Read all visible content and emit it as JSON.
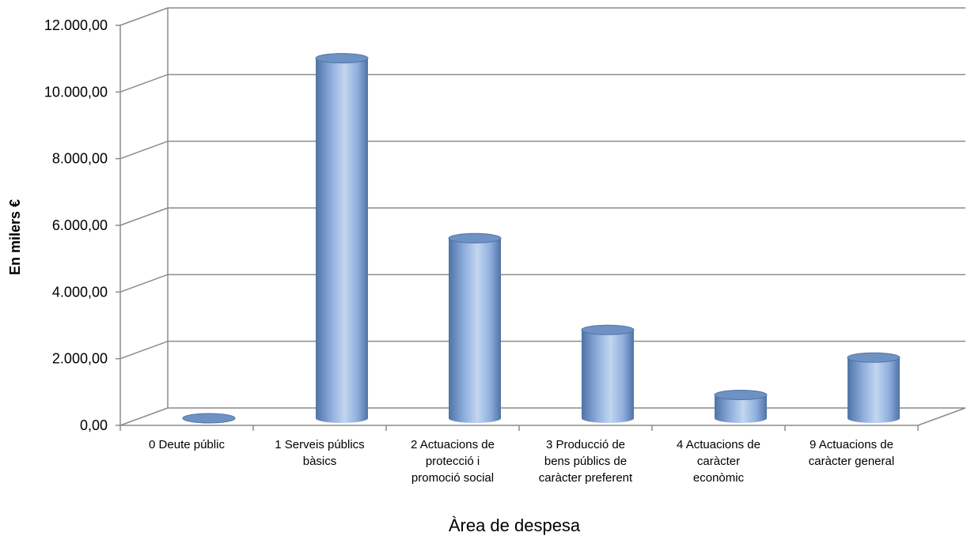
{
  "chart_data": {
    "type": "bar",
    "title": "",
    "xlabel": "Àrea de despesa",
    "ylabel": "En milers €",
    "ylim": [
      0,
      12000
    ],
    "y_ticks": [
      "0,00",
      "2.000,00",
      "4.000,00",
      "6.000,00",
      "8.000,00",
      "10.000,00",
      "12.000,00"
    ],
    "grid": true,
    "categories": [
      "0 Deute públic",
      "1 Serveis públics bàsics",
      "2 Actuacions de protecció i promoció social",
      "3 Producció de bens públics de caràcter preferent",
      "4 Actuacions de caràcter econòmic",
      "9 Actuacions de caràcter general"
    ],
    "category_lines": [
      [
        "0 Deute públic"
      ],
      [
        "1 Serveis públics",
        "bàsics"
      ],
      [
        "2 Actuacions de",
        "protecció i",
        "promoció social"
      ],
      [
        "3 Producció de",
        "bens públics de",
        "caràcter preferent"
      ],
      [
        "4 Actuacions de",
        "caràcter",
        "econòmic"
      ],
      [
        "9 Actuacions de",
        "caràcter general"
      ]
    ],
    "values": [
      0,
      10800,
      5400,
      2650,
      700,
      1820
    ],
    "colors": {
      "bar_light": "#b9d0ee",
      "bar_mid": "#8eaedd",
      "bar_dark": "#4f73a6",
      "top": "#6f92c4",
      "grid": "#8c8c8c"
    }
  }
}
